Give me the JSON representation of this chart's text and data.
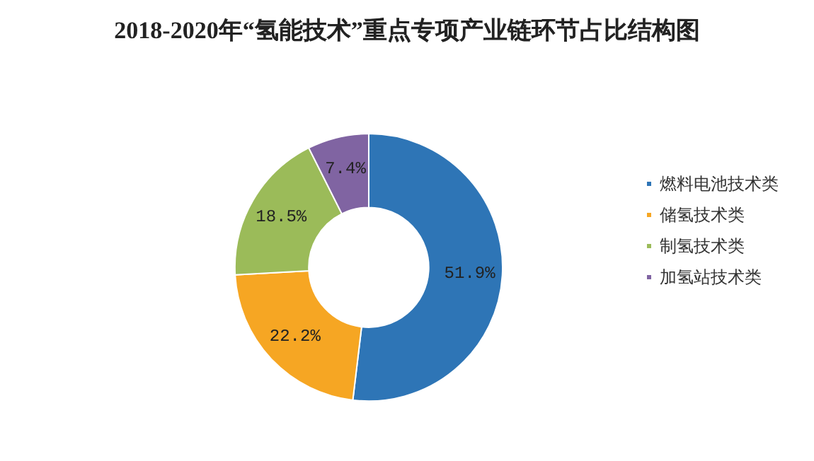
{
  "chart_data": {
    "type": "donut",
    "title": "2018-2020年“氢能技术”重点专项产业链环节占比结构图",
    "categories": [
      "燃料电池技术类",
      "储氢技术类",
      "制氢技术类",
      "加氢站技术类"
    ],
    "values": [
      51.9,
      22.2,
      18.5,
      7.4
    ],
    "colors": [
      "#2e75b6",
      "#f6a623",
      "#9bbb59",
      "#8064a2"
    ],
    "value_labels": [
      "51.9%",
      "22.2%",
      "18.5%",
      "7.4%"
    ],
    "legend": "right"
  }
}
